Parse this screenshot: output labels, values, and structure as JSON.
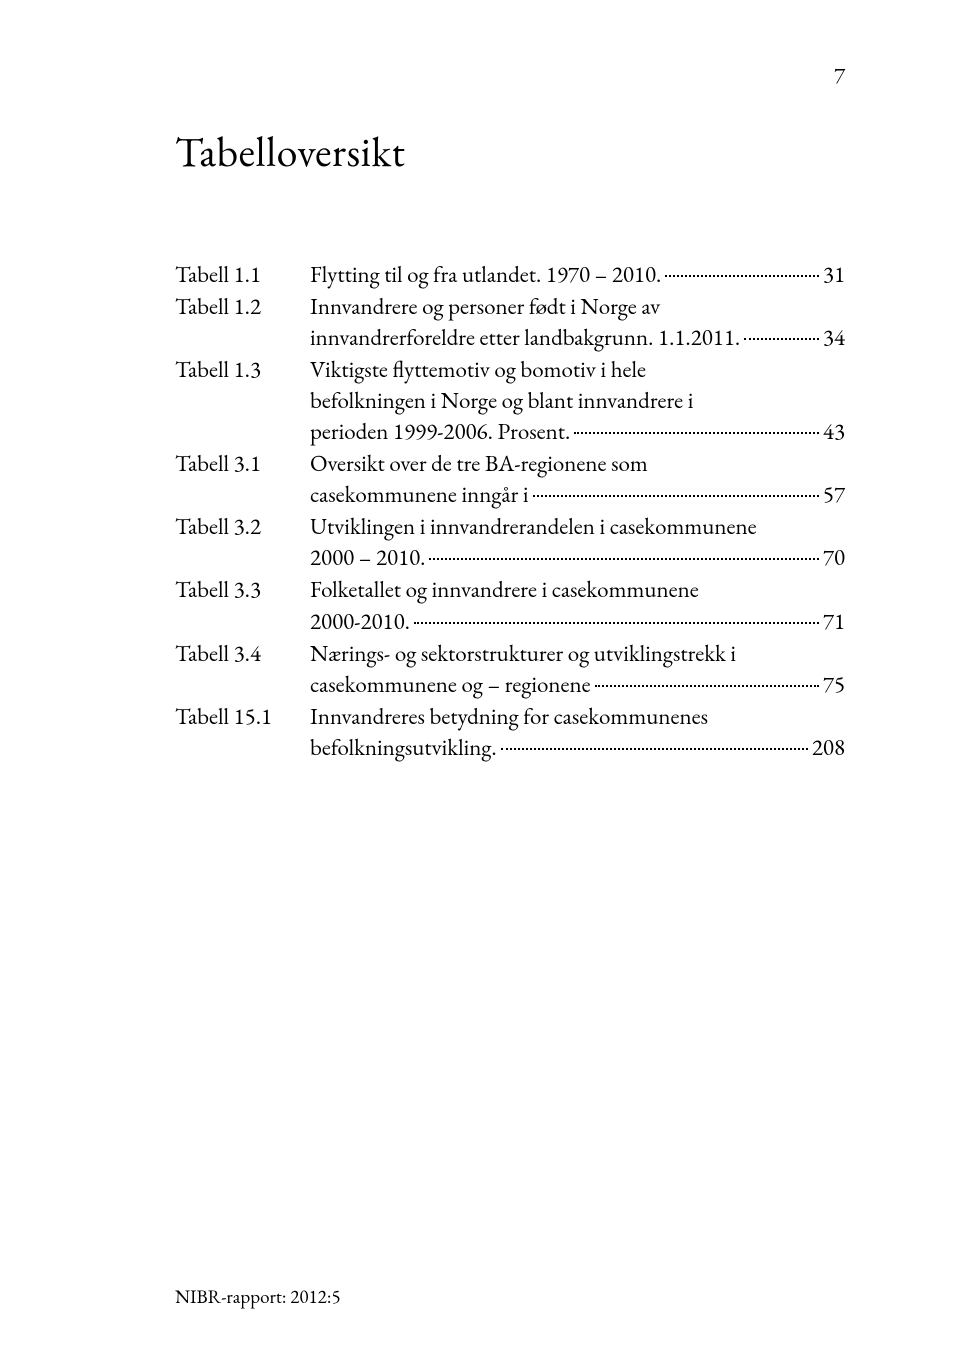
{
  "page_number": "7",
  "title": "Tabelloversikt",
  "footer": "NIBR-rapport: 2012:5",
  "text_color": "#000000",
  "background_color": "#ffffff",
  "fonts": {
    "body_family": "Garamond",
    "title_size_pt": 31,
    "body_size_pt": 17,
    "footer_size_pt": 14
  },
  "toc": [
    {
      "label": "Tabell 1.1",
      "lines": [],
      "tail": "Flytting til og fra utlandet. 1970 – 2010.",
      "page": "31"
    },
    {
      "label": "Tabell 1.2",
      "lines": [
        "Innvandrere og personer født i Norge av"
      ],
      "tail": "innvandrerforeldre etter landbakgrunn. 1.1.2011.",
      "page": "34"
    },
    {
      "label": "Tabell 1.3",
      "lines": [
        "Viktigste flyttemotiv og bomotiv i hele",
        "befolkningen i Norge og blant innvandrere i"
      ],
      "tail": "perioden 1999-2006. Prosent. ",
      "page": "43"
    },
    {
      "label": "Tabell 3.1",
      "lines": [
        "Oversikt over de tre BA-regionene som"
      ],
      "tail": "casekommunene inngår i",
      "page": "57"
    },
    {
      "label": "Tabell 3.2",
      "lines": [
        "Utviklingen i innvandrerandelen i casekommunene"
      ],
      "tail": "2000 – 2010. ",
      "page": "70"
    },
    {
      "label": "Tabell 3.3",
      "lines": [
        "Folketallet og innvandrere i casekommunene"
      ],
      "tail": "2000-2010. ",
      "page": "71"
    },
    {
      "label": "Tabell 3.4",
      "lines": [
        "Nærings- og sektorstrukturer og utviklingstrekk i"
      ],
      "tail": "casekommunene og – regionene",
      "page": "75"
    },
    {
      "label": "Tabell 15.1",
      "lines": [
        "Innvandreres betydning for casekommunenes"
      ],
      "tail": "befolkningsutvikling. ",
      "page": "208"
    }
  ]
}
